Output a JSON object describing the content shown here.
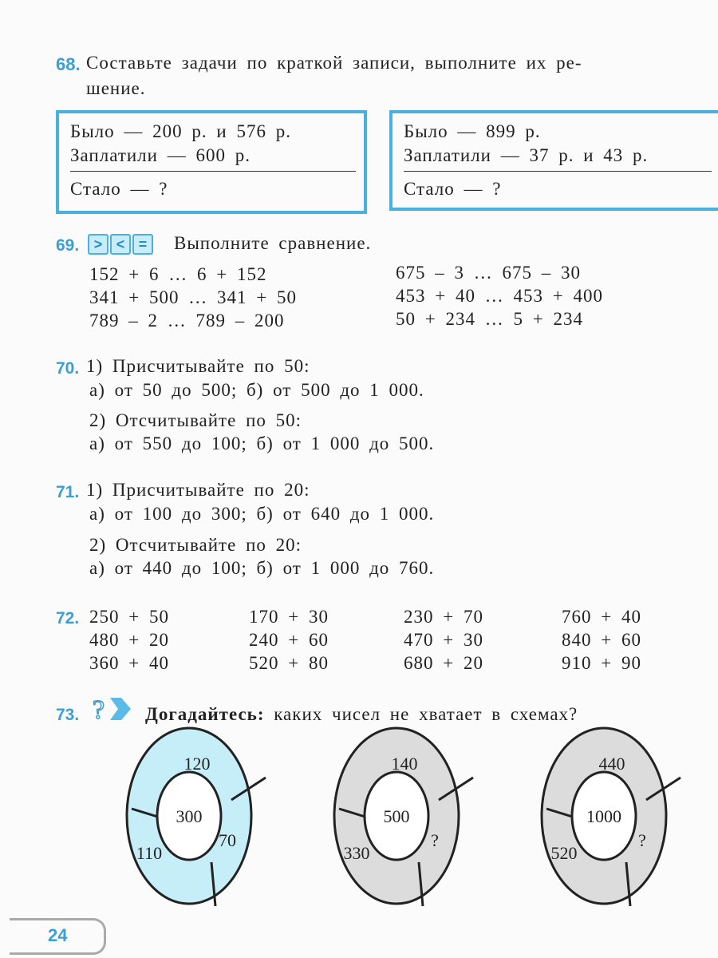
{
  "ex68": {
    "num": "68.",
    "text1": "Составьте задачи по краткой записи, выполните их ре-",
    "text2": "шение.",
    "box1": {
      "l1": "Было — 200 р. и 576 р.",
      "l2": "Заплатили — 600 р.",
      "l3": "Стало — ?"
    },
    "box2": {
      "l1": "Было — 899 р.",
      "l2": "Заплатили — 37 р. и 43 р.",
      "l3": "Стало — ?"
    }
  },
  "ex69": {
    "num": "69.",
    "icons": [
      ">",
      "<",
      "="
    ],
    "text": "Выполните сравнение.",
    "left": [
      "152 + 6 … 6 + 152",
      "341 + 500 … 341 + 50",
      "789 – 2 … 789 – 200"
    ],
    "right": [
      "675 – 3 … 675 – 30",
      "453 + 40 … 453 + 400",
      "50 + 234 … 5 + 234"
    ]
  },
  "ex70": {
    "num": "70.",
    "l1": "1) Присчитывайте по 50:",
    "l2": "а) от 50 до 500;  б) от 500 до 1 000.",
    "l3": "2) Отсчитывайте по 50:",
    "l4": "а) от 550 до 100;  б) от 1 000 до 500."
  },
  "ex71": {
    "num": "71.",
    "l1": "1) Присчитывайте по 20:",
    "l2": "а) от 100 до 300;  б) от 640 до 1 000.",
    "l3": "2) Отсчитывайте по 20:",
    "l4": "а) от 440 до 100;  б) от 1 000 до 760."
  },
  "ex72": {
    "num": "72.",
    "cols": [
      [
        "250 + 50",
        "480 + 20",
        "360 + 40"
      ],
      [
        "170 + 30",
        "240 + 60",
        "520 + 80"
      ],
      [
        "230 + 70",
        "470 + 30",
        "680 + 20"
      ],
      [
        "760 + 40",
        "840 + 60",
        "910 + 90"
      ]
    ]
  },
  "ex73": {
    "num": "73.",
    "icon": "question-arrow-icon",
    "bold": "Догадайтесь:",
    "text": "каких чисел не хватает в схемах?",
    "schemes": [
      {
        "center": "300",
        "top": "120",
        "right": "70",
        "left": "110",
        "color": "#c6eef9"
      },
      {
        "center": "500",
        "top": "140",
        "right": "?",
        "left": "330",
        "color": "#dcdcdc"
      },
      {
        "center": "1000",
        "top": "440",
        "right": "?",
        "left": "520",
        "color": "#dcdcdc"
      }
    ]
  },
  "page_number": "24"
}
